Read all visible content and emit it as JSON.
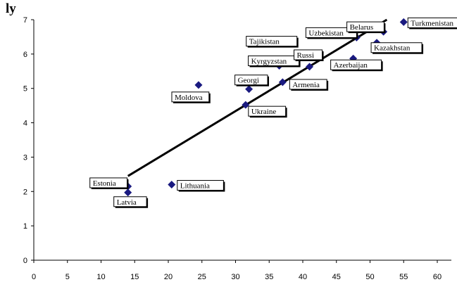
{
  "chart_data": {
    "type": "scatter",
    "title": "ly",
    "xlabel": "",
    "ylabel": "",
    "xlim": [
      0,
      60
    ],
    "ylim": [
      0,
      7
    ],
    "xticks": [
      0,
      5,
      10,
      15,
      20,
      25,
      30,
      35,
      40,
      45,
      50,
      55,
      60
    ],
    "yticks": [
      0,
      1,
      2,
      3,
      4,
      5,
      6,
      7
    ],
    "grid": false,
    "marker_color": "#1a1a80",
    "trendline": {
      "color": "#000000",
      "from": [
        14,
        2.45
      ],
      "to": [
        52.5,
        7.0
      ]
    },
    "points": [
      {
        "label": "Estonia",
        "x": 14.0,
        "y": 2.15
      },
      {
        "label": "Latvia",
        "x": 14.0,
        "y": 1.97
      },
      {
        "label": "Lithuania",
        "x": 20.5,
        "y": 2.2
      },
      {
        "label": "Moldova",
        "x": 24.5,
        "y": 5.1
      },
      {
        "label": "Ukraine",
        "x": 31.5,
        "y": 4.52
      },
      {
        "label": "Georgi",
        "x": 32.0,
        "y": 4.98
      },
      {
        "label": "Kyrgyzstan",
        "x": 36.5,
        "y": 5.66
      },
      {
        "label": "Tajikistan",
        "x": 36.2,
        "y": 5.78
      },
      {
        "label": "Armenia",
        "x": 37.0,
        "y": 5.18
      },
      {
        "label": "Russi",
        "x": 41.0,
        "y": 5.63
      },
      {
        "label": "Azerbaijan",
        "x": 47.5,
        "y": 5.87
      },
      {
        "label": "Uzbekistan",
        "x": 48.0,
        "y": 6.48
      },
      {
        "label": "Kazakhstan",
        "x": 51.0,
        "y": 6.33
      },
      {
        "label": "Belarus",
        "x": 52.0,
        "y": 6.65
      },
      {
        "label": "Turkmenistan",
        "x": 55.0,
        "y": 6.93
      }
    ]
  }
}
